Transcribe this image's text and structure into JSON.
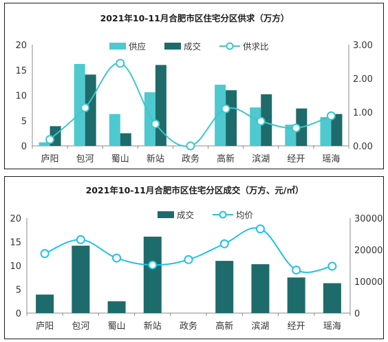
{
  "chart_data": [
    {
      "type": "bar",
      "title": "2021年10-11月合肥市区住宅分区供求（万方）",
      "categories": [
        "庐阳",
        "包河",
        "蜀山",
        "新站",
        "政务",
        "高新",
        "滨湖",
        "经开",
        "瑶海"
      ],
      "series": [
        {
          "name": "供应",
          "type": "bar",
          "axis": "left",
          "color": "#4ec9d0",
          "values": [
            0.7,
            16.2,
            6.3,
            10.6,
            0,
            12.1,
            7.6,
            4.2,
            5.7
          ]
        },
        {
          "name": "成交",
          "type": "bar",
          "axis": "left",
          "color": "#1e6b6b",
          "values": [
            3.9,
            14.1,
            2.5,
            16.0,
            0,
            11.0,
            10.2,
            7.4,
            6.3
          ]
        },
        {
          "name": "供求比",
          "type": "line",
          "axis": "right",
          "color": "#3cc6cc",
          "smooth": true,
          "values": [
            0.19,
            1.13,
            2.45,
            0.65,
            0.0,
            1.1,
            0.73,
            0.53,
            0.89
          ]
        }
      ],
      "ylim_left": [
        0,
        20
      ],
      "yticks_left": [
        0,
        5,
        10,
        15,
        20
      ],
      "ylim_right": [
        0,
        3
      ],
      "yticks_right": [
        "0.00",
        "1.00",
        "2.00",
        "3.00"
      ],
      "legend_position": "top",
      "grid": false
    },
    {
      "type": "bar",
      "title": "2021年10-11月合肥市区住宅分区成交（万方、元/㎡）",
      "categories": [
        "庐阳",
        "包河",
        "蜀山",
        "新站",
        "政务",
        "高新",
        "滨湖",
        "经开",
        "瑶海"
      ],
      "series": [
        {
          "name": "成交",
          "type": "bar",
          "axis": "left",
          "color": "#1e6b6b",
          "values": [
            3.9,
            14.2,
            2.5,
            16.1,
            0,
            11.0,
            10.3,
            7.5,
            6.3
          ]
        },
        {
          "name": "均价",
          "type": "line",
          "axis": "right",
          "color": "#1ec2e6",
          "smooth": true,
          "values": [
            18800,
            23200,
            17400,
            15200,
            16900,
            21900,
            26600,
            13600,
            14800
          ]
        }
      ],
      "ylim_left": [
        0,
        20
      ],
      "yticks_left": [
        0,
        5,
        10,
        15,
        20
      ],
      "ylim_right": [
        0,
        30000
      ],
      "yticks_right": [
        "0",
        "10000",
        "20000",
        "30000"
      ],
      "legend_position": "top",
      "grid": false
    }
  ]
}
